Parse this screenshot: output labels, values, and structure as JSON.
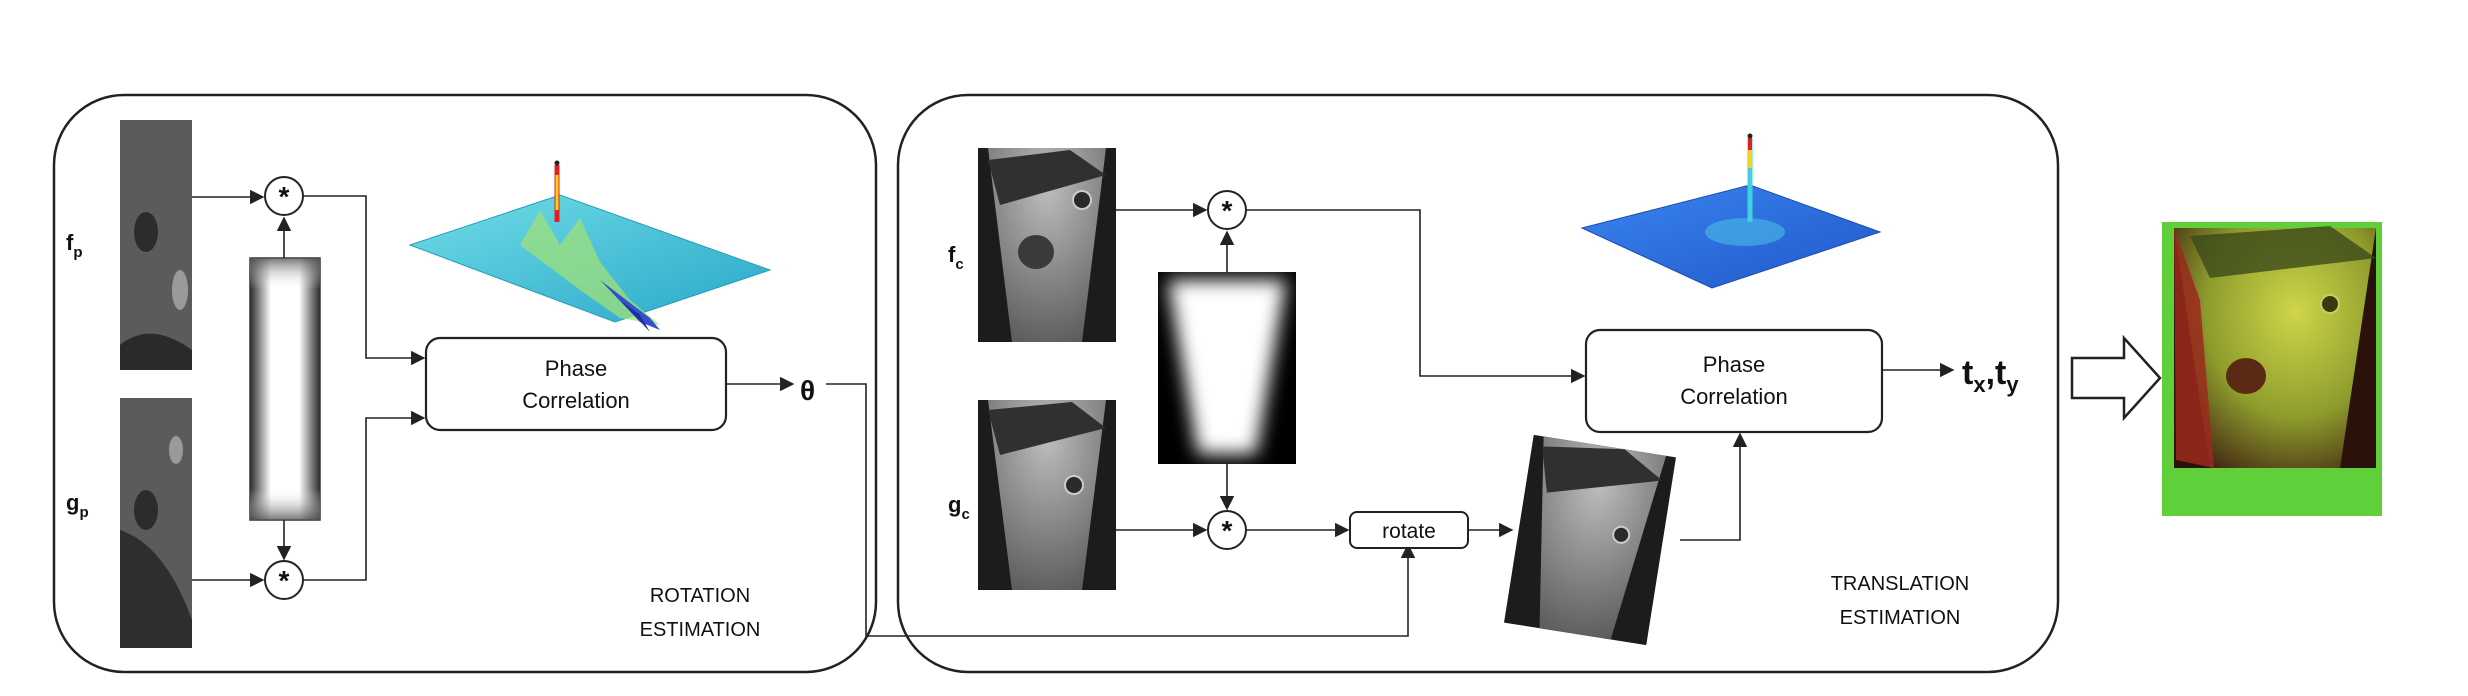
{
  "rotation_panel": {
    "input_top_label": "f",
    "input_top_sub": "p",
    "input_bottom_label": "g",
    "input_bottom_sub": "p",
    "multiply_symbol": "*",
    "block_line1": "Phase",
    "block_line2": "Correlation",
    "output_symbol": "θ",
    "caption_line1": "ROTATION",
    "caption_line2": "ESTIMATION"
  },
  "translation_panel": {
    "input_top_label": "f",
    "input_top_sub": "c",
    "input_bottom_label": "g",
    "input_bottom_sub": "c",
    "multiply_symbol": "*",
    "rotate_label": "rotate",
    "block_line1": "Phase",
    "block_line2": "Correlation",
    "output_main": "t",
    "output_sub_x": "x",
    "output_sep": ",",
    "output_main2": "t",
    "output_sub_y": "y",
    "caption_line1": "TRANSLATION",
    "caption_line2": "ESTIMATION"
  },
  "colors": {
    "surface_cyan": "#46c8d8",
    "surface_blue": "#2a6fe0",
    "peak_red": "#e02020",
    "overlay_green": "#5fcf3a",
    "overlay_red": "#b52a20"
  }
}
